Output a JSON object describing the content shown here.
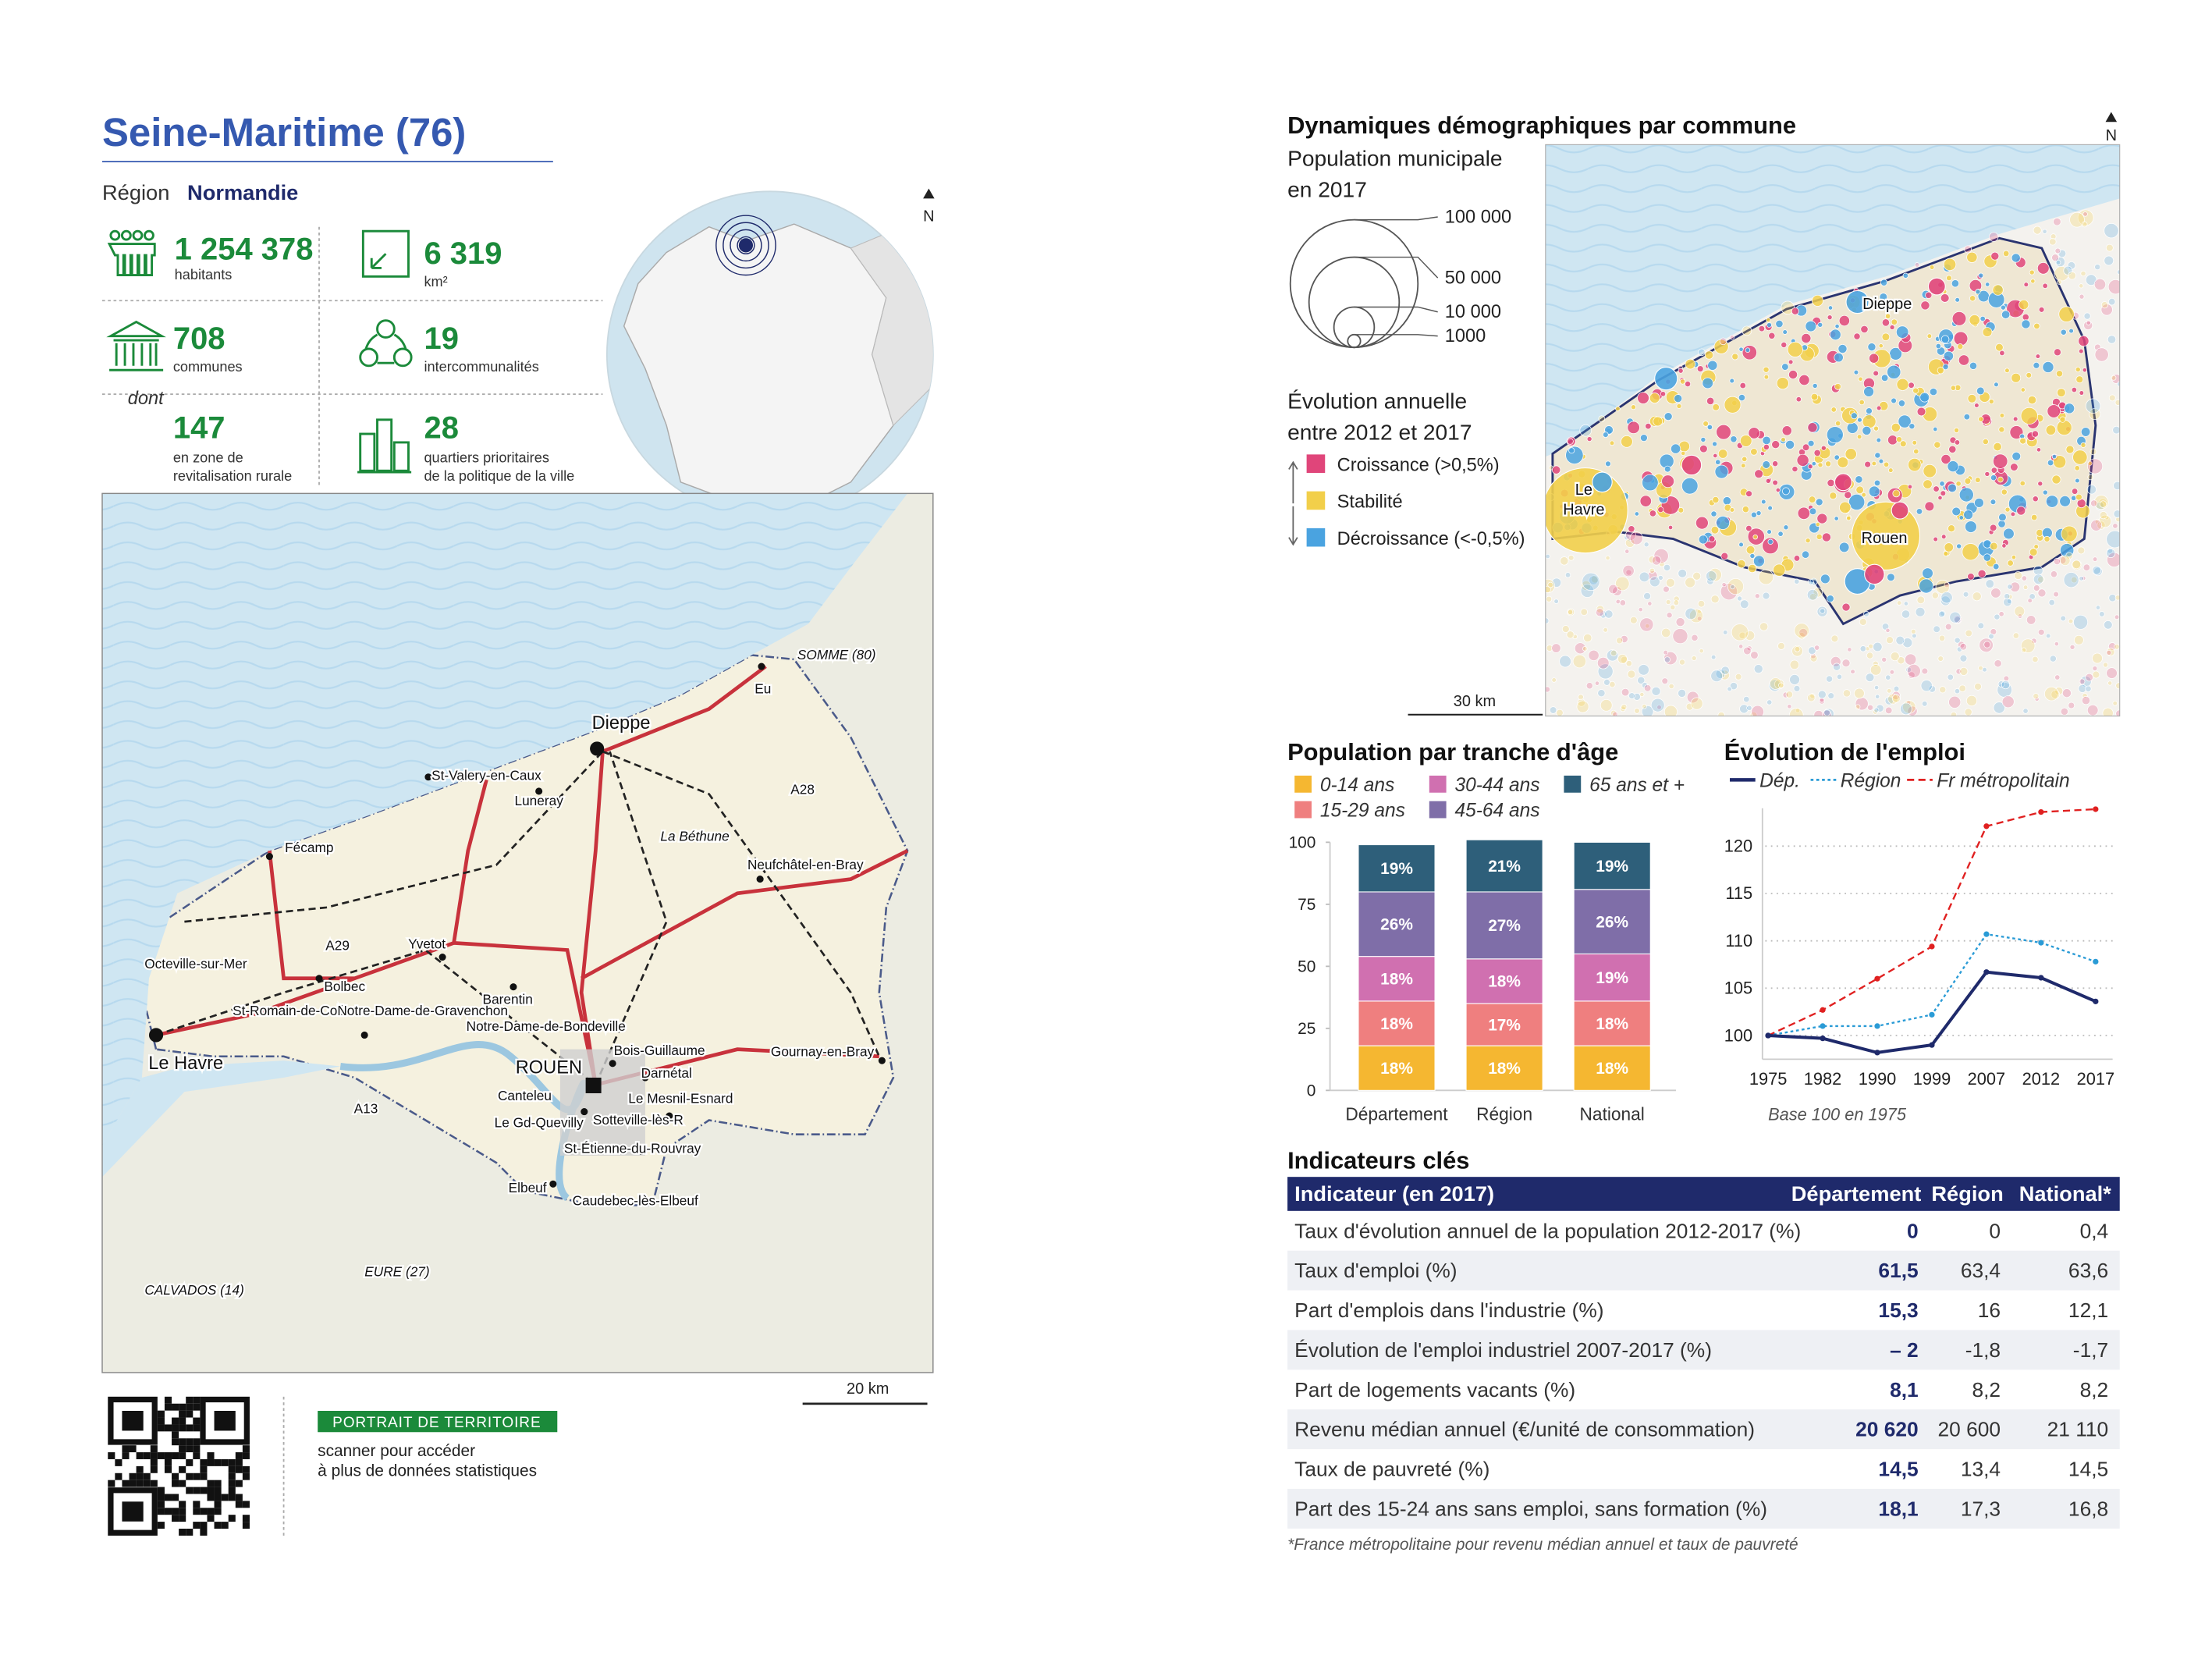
{
  "header": {
    "title": "Seine-Maritime (76)",
    "region_label": "Région",
    "region": "Normandie"
  },
  "key_figures": [
    {
      "value": "1 254 378",
      "label": [
        "habitants"
      ]
    },
    {
      "value": "6 319",
      "label": [
        "km²"
      ]
    },
    {
      "value": "708",
      "label": [
        "communes"
      ]
    },
    {
      "value": "19",
      "label": [
        "intercommunalités"
      ]
    },
    {
      "value": "147",
      "label": [
        "en zone de",
        "revitalisation rurale"
      ]
    },
    {
      "value": "28",
      "label": [
        "quartiers prioritaires",
        "de la politique de la ville"
      ]
    }
  ],
  "dont": "dont",
  "globe": {
    "north": "N"
  },
  "map": {
    "labels": [
      "SOMME (80)",
      "Eu",
      "Dieppe",
      "St-Valery-en-Caux",
      "Luneray",
      "Fécamp",
      "Neufchâtel-en-Bray",
      "Yvetot",
      "Octeville-sur-Mer",
      "Bolbec",
      "St-Romain-de-Colbosc",
      "Notre-Dame-de-Gravenchon",
      "Barentin",
      "Notre-Dame-de-Bondeville",
      "Bois-Guillaume",
      "Darnétal",
      "ROUEN",
      "Canteleu",
      "Le Mesnil-Esnard",
      "Gournay-en-Bray",
      "Le Gd-Quevilly",
      "Sotteville-lès-R",
      "St-Étienne-du-Rouvray",
      "Elbeuf",
      "Caudebec-lès-Elbeuf",
      "Le Havre",
      "CALVADOS (14)",
      "EURE (27)",
      "La Béthune",
      "A28",
      "A29",
      "A13"
    ],
    "scale": "20 km"
  },
  "qr": {
    "banner": "PORTRAIT DE TERRITOIRE",
    "text": [
      "scanner pour accéder",
      "à plus de données statistiques"
    ]
  },
  "demo_map": {
    "title": "Dynamiques démographiques par commune",
    "north": "N",
    "size_title": [
      "Population municipale",
      "en 2017"
    ],
    "sizes": [
      {
        "value": 100000,
        "label": "100 000"
      },
      {
        "value": 50000,
        "label": "50 000"
      },
      {
        "value": 10000,
        "label": "10 000"
      },
      {
        "value": 1000,
        "label": "1000"
      }
    ],
    "evolution_title": [
      "Évolution annuelle",
      "entre 2012 et 2017"
    ],
    "classes": [
      {
        "name": "Croissance (>0,5%)",
        "color": "#e0457a"
      },
      {
        "name": "Stabilité",
        "color": "#f2cf4a"
      },
      {
        "name": "Décroissance (<-0,5%)",
        "color": "#4aa3e0"
      }
    ],
    "cities": [
      [
        "Dieppe"
      ],
      [
        "Le",
        "Havre"
      ],
      [
        "Rouen"
      ]
    ],
    "scale": "30 km"
  },
  "age_chart": {
    "type": "stacked_bar",
    "title": "Population par tranche d'âge",
    "categories": [
      "Département",
      "Région",
      "National"
    ],
    "series": [
      {
        "name": "0-14 ans",
        "color": "#f5b731",
        "values": [
          18,
          18,
          18
        ],
        "value_labels": [
          "18%",
          "18%",
          "18%"
        ]
      },
      {
        "name": "15-29 ans",
        "color": "#ef7f7f",
        "values": [
          18,
          17,
          18
        ],
        "value_labels": [
          "18%",
          "17%",
          "18%"
        ]
      },
      {
        "name": "30-44 ans",
        "color": "#d070b0",
        "values": [
          18,
          18,
          19
        ],
        "value_labels": [
          "18%",
          "18%",
          "19%"
        ]
      },
      {
        "name": "45-64 ans",
        "color": "#7f6ea8",
        "values": [
          26,
          27,
          26
        ],
        "value_labels": [
          "26%",
          "27%",
          "26%"
        ]
      },
      {
        "name": "65 ans et +",
        "color": "#2e5f7a",
        "values": [
          19,
          21,
          19
        ],
        "value_labels": [
          "19%",
          "21%",
          "19%"
        ]
      }
    ],
    "ylim": [
      0,
      100
    ],
    "yticks": [
      0,
      25,
      50,
      75,
      100
    ]
  },
  "employment_chart": {
    "type": "line",
    "title": "Évolution de l'emploi",
    "categories": [
      "1975",
      "1982",
      "1990",
      "1999",
      "2007",
      "2012",
      "2017"
    ],
    "series": [
      {
        "name": "Dép.",
        "color": "#1f2a6b",
        "style": "solid",
        "values": [
          100,
          99.7,
          98.2,
          99,
          106.7,
          106.1,
          103.6
        ]
      },
      {
        "name": "Région",
        "color": "#2a9bd6",
        "style": "dotted",
        "values": [
          100,
          101,
          101,
          102.2,
          110.7,
          109.8,
          107.8
        ]
      },
      {
        "name": "Fr métropolitain",
        "color": "#e02020",
        "style": "dashed",
        "values": [
          100,
          102.7,
          106,
          109.4,
          122.1,
          123.6,
          123.9
        ]
      }
    ],
    "ylim": [
      97.5,
      124
    ],
    "yticks": [
      100,
      105,
      110,
      115,
      120
    ],
    "grid": true,
    "note": "Base 100 en 1975"
  },
  "indicators": {
    "title": "Indicateurs clés",
    "header": [
      "Indicateur (en 2017)",
      "Département",
      "Région",
      "National*"
    ],
    "rows": [
      [
        "Taux d'évolution annuel de la population 2012-2017 (%)",
        "0",
        "0",
        "0,4"
      ],
      [
        "Taux d'emploi (%)",
        "61,5",
        "63,4",
        "63,6"
      ],
      [
        "Part d'emplois dans l'industrie (%)",
        "15,3",
        "16",
        "12,1"
      ],
      [
        "Évolution de l'emploi industriel 2007-2017 (%)",
        "– 2",
        "-1,8",
        "-1,7"
      ],
      [
        "Part de logements vacants (%)",
        "8,1",
        "8,2",
        "8,2"
      ],
      [
        "Revenu médian annuel (€/unité de consommation)",
        "20 620",
        "20 600",
        "21 110"
      ],
      [
        "Taux de pauvreté (%)",
        "14,5",
        "13,4",
        "14,5"
      ],
      [
        "Part des 15-24 ans sans emploi, sans formation (%)",
        "18,1",
        "17,3",
        "16,8"
      ]
    ],
    "footnote": "*France métropolitaine pour revenu médian annuel et taux de pauvreté"
  }
}
